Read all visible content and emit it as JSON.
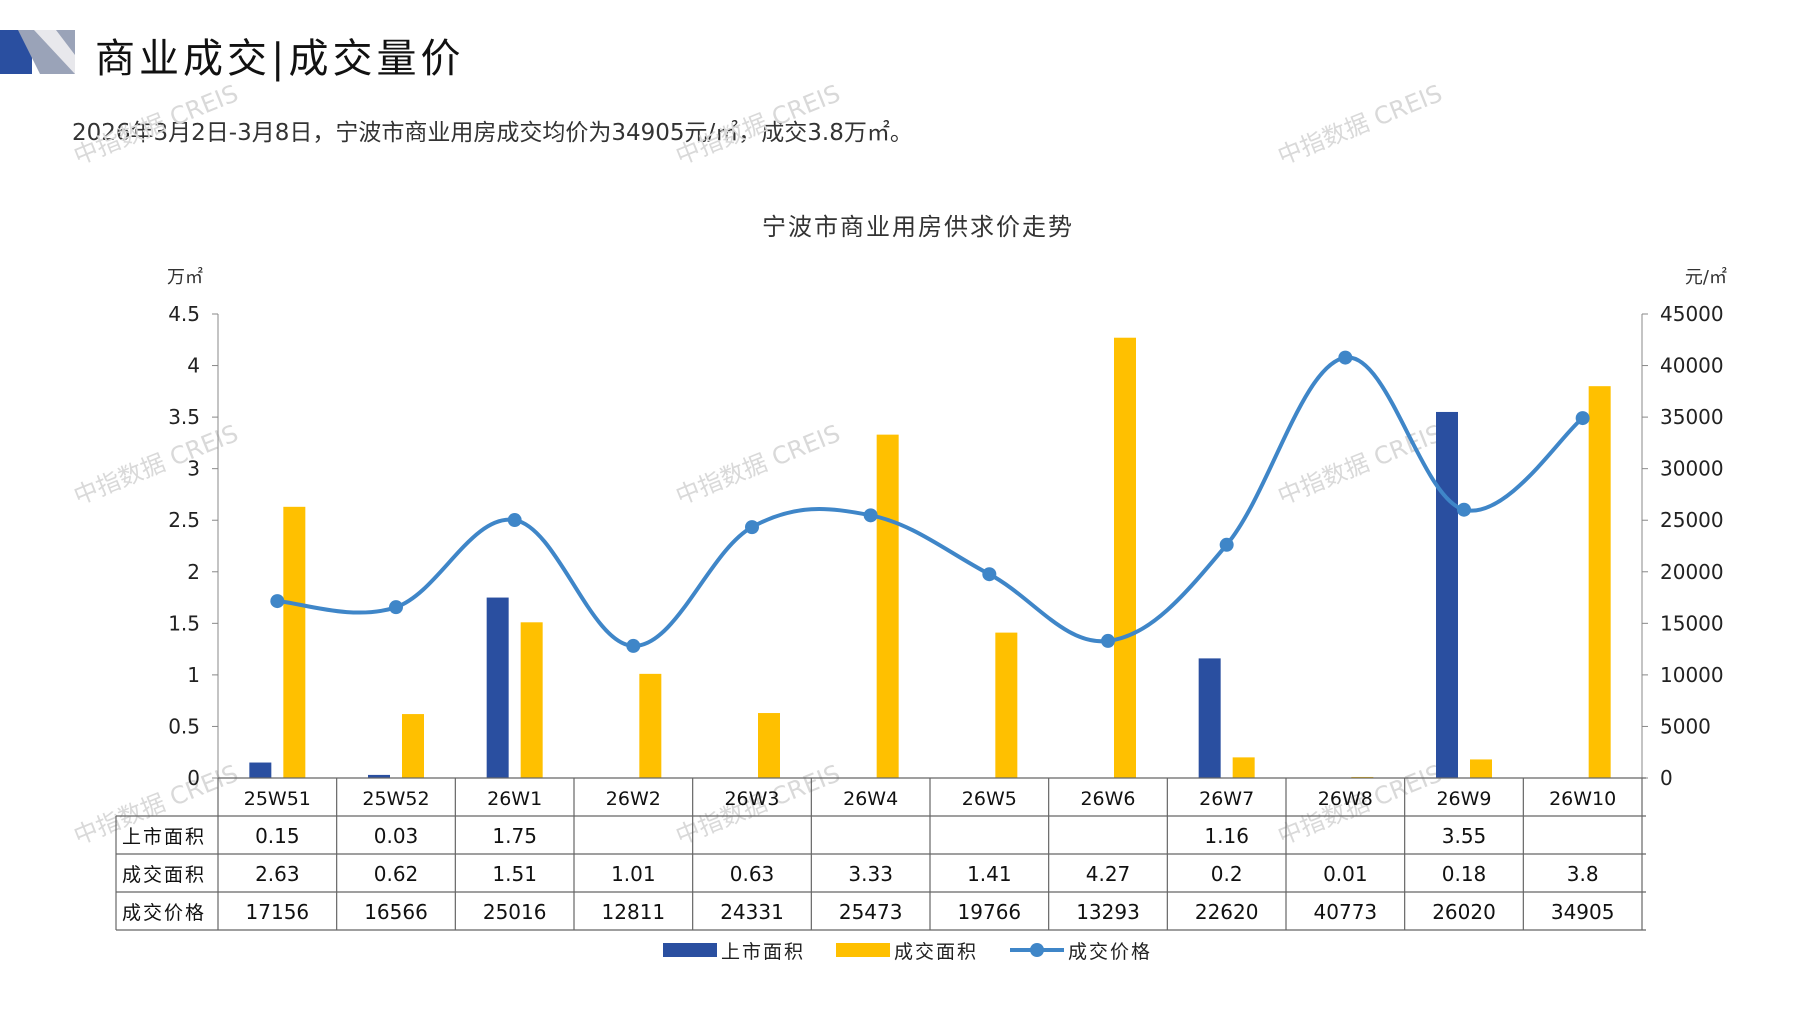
{
  "header": {
    "title": "商业成交|成交量价",
    "summary": "2026年3月2日-3月8日，宁波市商业用房成交均价为34905元/㎡，成交3.8万㎡。"
  },
  "watermark": "中指数据 CREIS",
  "colors": {
    "supply": "#2a4fa0",
    "deal_area": "#ffc000",
    "price": "#3f86c8",
    "accent": "#2a4fa0"
  },
  "chart_data": {
    "type": "bar",
    "title": "宁波市商业用房供求价走势",
    "ylabel_left": "万㎡",
    "ylabel_right": "元/㎡",
    "ylim_left": [
      0,
      4.5
    ],
    "ylim_right": [
      0,
      45000
    ],
    "yticks_left": [
      "0",
      "0.5",
      "1",
      "1.5",
      "2",
      "2.5",
      "3",
      "3.5",
      "4",
      "4.5"
    ],
    "yticks_right": [
      "0",
      "5000",
      "10000",
      "15000",
      "20000",
      "25000",
      "30000",
      "35000",
      "40000",
      "45000"
    ],
    "categories": [
      "25W51",
      "25W52",
      "26W1",
      "26W2",
      "26W3",
      "26W4",
      "26W5",
      "26W6",
      "26W7",
      "26W8",
      "26W9",
      "26W10"
    ],
    "series": [
      {
        "name": "上市面积",
        "type": "bar",
        "axis": "left",
        "color": "#2a4fa0",
        "values": [
          0.15,
          0.03,
          1.75,
          null,
          null,
          null,
          null,
          null,
          1.16,
          null,
          3.55,
          null
        ],
        "labels": [
          "0.15",
          "0.03",
          "1.75",
          "",
          "",
          "",
          "",
          "",
          "1.16",
          "",
          "3.55",
          ""
        ]
      },
      {
        "name": "成交面积",
        "type": "bar",
        "axis": "left",
        "color": "#ffc000",
        "values": [
          2.63,
          0.62,
          1.51,
          1.01,
          0.63,
          3.33,
          1.41,
          4.27,
          0.2,
          0.01,
          0.18,
          3.8
        ],
        "labels": [
          "2.63",
          "0.62",
          "1.51",
          "1.01",
          "0.63",
          "3.33",
          "1.41",
          "4.27",
          "0.2",
          "0.01",
          "0.18",
          "3.8"
        ]
      },
      {
        "name": "成交价格",
        "type": "line",
        "axis": "right",
        "color": "#3f86c8",
        "values": [
          17156,
          16566,
          25016,
          12811,
          24331,
          25473,
          19766,
          13293,
          22620,
          40773,
          26020,
          34905
        ],
        "labels": [
          "17156",
          "16566",
          "25016",
          "12811",
          "24331",
          "25473",
          "19766",
          "13293",
          "22620",
          "40773",
          "26020",
          "34905"
        ]
      }
    ],
    "grid": false,
    "legend": "bottom",
    "data_table": true
  }
}
